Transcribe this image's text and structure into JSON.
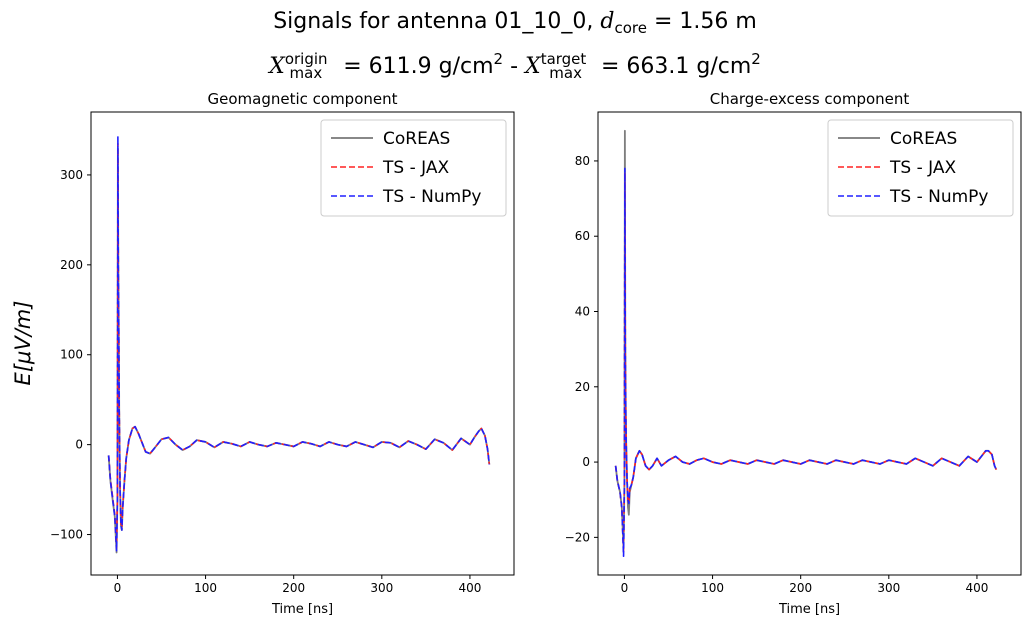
{
  "figure": {
    "title_line1_prefix": "Signals for antenna 01_10_0, ",
    "d_symbol": "d",
    "d_sub": "core",
    "d_value": " = 1.56 m",
    "x_symbol": "X",
    "xo_sup": "origin",
    "xo_sub": "max",
    "xo_value": " = 611.9 g/cm",
    "xo_exp": "2",
    "separator": " - ",
    "xt_sup": "target",
    "xt_sub": "max",
    "xt_value": " = 663.1 g/cm",
    "xt_exp": "2",
    "shared_ylabel": "E[μV/m]"
  },
  "colors": {
    "coreas": "#777777",
    "jax": "#ff2222",
    "numpy": "#2020ff"
  },
  "chart_data": [
    {
      "type": "line",
      "title": "Geomagnetic component",
      "xlabel": "Time [ns]",
      "ylabel": "E[μV/m]",
      "xlim": [
        -30,
        450
      ],
      "ylim": [
        -145,
        370
      ],
      "xticks": [
        0,
        100,
        200,
        300,
        400
      ],
      "yticks": [
        -100,
        0,
        100,
        200,
        300
      ],
      "legend": [
        "CoREAS",
        "TS - JAX",
        "TS - NumPy"
      ],
      "legend_position": "upper right",
      "series": [
        {
          "name": "CoREAS",
          "style": "solid",
          "x": [
            -10,
            -8,
            -5,
            -3,
            -1,
            0,
            0.5,
            1,
            1.5,
            2,
            3,
            4,
            5,
            6,
            8,
            10,
            13,
            17,
            20,
            24,
            28,
            32,
            37,
            42,
            50,
            58,
            66,
            74,
            82,
            90,
            100,
            110,
            120,
            130,
            140,
            150,
            160,
            170,
            180,
            190,
            200,
            210,
            220,
            230,
            240,
            250,
            260,
            270,
            280,
            290,
            300,
            310,
            320,
            330,
            340,
            350,
            360,
            370,
            380,
            390,
            400,
            405,
            410,
            413,
            417,
            420,
            422
          ],
          "values": [
            -12,
            -40,
            -65,
            -80,
            -120,
            -60,
            330,
            200,
            130,
            40,
            -50,
            -90,
            -95,
            -70,
            -40,
            -15,
            5,
            18,
            20,
            12,
            2,
            -8,
            -10,
            -4,
            6,
            8,
            0,
            -6,
            -2,
            5,
            3,
            -3,
            3,
            1,
            -2,
            3,
            0,
            -2,
            2,
            0,
            -2,
            3,
            1,
            -2,
            3,
            0,
            -2,
            3,
            0,
            -3,
            3,
            2,
            -3,
            4,
            0,
            -5,
            6,
            2,
            -6,
            7,
            0,
            8,
            15,
            18,
            10,
            -5,
            -22
          ]
        },
        {
          "name": "TS - JAX",
          "style": "dashed",
          "x": [
            -10,
            -8,
            -5,
            -3,
            -1,
            0,
            0.5,
            1,
            1.5,
            2,
            3,
            4,
            5,
            6,
            8,
            10,
            13,
            17,
            20,
            24,
            28,
            32,
            37,
            42,
            50,
            58,
            66,
            74,
            82,
            90,
            100,
            110,
            120,
            130,
            140,
            150,
            160,
            170,
            180,
            190,
            200,
            210,
            220,
            230,
            240,
            250,
            260,
            270,
            280,
            290,
            300,
            310,
            320,
            330,
            340,
            350,
            360,
            370,
            380,
            390,
            400,
            405,
            410,
            413,
            417,
            420,
            422
          ],
          "values": [
            -12,
            -38,
            -62,
            -78,
            -115,
            -55,
            335,
            190,
            125,
            40,
            -48,
            -88,
            -92,
            -68,
            -40,
            -15,
            5,
            18,
            20,
            12,
            2,
            -8,
            -10,
            -4,
            6,
            8,
            0,
            -6,
            -2,
            5,
            3,
            -3,
            3,
            1,
            -2,
            3,
            0,
            -2,
            2,
            0,
            -2,
            3,
            1,
            -2,
            3,
            0,
            -2,
            3,
            0,
            -3,
            3,
            2,
            -3,
            4,
            0,
            -5,
            6,
            2,
            -6,
            7,
            0,
            8,
            15,
            18,
            10,
            -5,
            -22
          ]
        },
        {
          "name": "TS - NumPy",
          "style": "dashed",
          "x": [
            -10,
            -8,
            -5,
            -3,
            -1,
            0,
            0.5,
            1,
            1.5,
            2,
            3,
            4,
            5,
            6,
            8,
            10,
            13,
            17,
            20,
            24,
            28,
            32,
            37,
            42,
            50,
            58,
            66,
            74,
            82,
            90,
            100,
            110,
            120,
            130,
            140,
            150,
            160,
            170,
            180,
            190,
            200,
            210,
            220,
            230,
            240,
            250,
            260,
            270,
            280,
            290,
            300,
            310,
            320,
            330,
            340,
            350,
            360,
            370,
            380,
            390,
            400,
            405,
            410,
            413,
            417,
            420,
            422
          ],
          "values": [
            -12,
            -40,
            -64,
            -80,
            -118,
            -58,
            343,
            195,
            128,
            40,
            -50,
            -90,
            -95,
            -70,
            -40,
            -15,
            5,
            18,
            20,
            12,
            2,
            -8,
            -10,
            -4,
            6,
            8,
            0,
            -6,
            -2,
            5,
            3,
            -3,
            3,
            1,
            -2,
            3,
            0,
            -2,
            2,
            0,
            -2,
            3,
            1,
            -2,
            3,
            0,
            -2,
            3,
            0,
            -3,
            3,
            2,
            -3,
            4,
            0,
            -5,
            6,
            2,
            -6,
            7,
            0,
            8,
            15,
            18,
            10,
            -5,
            -22
          ]
        }
      ]
    },
    {
      "type": "line",
      "title": "Charge-excess component",
      "xlabel": "Time [ns]",
      "ylabel": "",
      "xlim": [
        -30,
        450
      ],
      "ylim": [
        -30,
        93
      ],
      "xticks": [
        0,
        100,
        200,
        300,
        400
      ],
      "yticks": [
        -20,
        0,
        20,
        40,
        60,
        80
      ],
      "legend": [
        "CoREAS",
        "TS - JAX",
        "TS - NumPy"
      ],
      "legend_position": "upper right",
      "series": [
        {
          "name": "CoREAS",
          "style": "solid",
          "x": [
            -10,
            -8,
            -5,
            -3,
            -1,
            0,
            0.5,
            1,
            1.5,
            2,
            3,
            4,
            5,
            6,
            8,
            10,
            13,
            17,
            20,
            24,
            28,
            32,
            37,
            42,
            50,
            58,
            66,
            74,
            82,
            90,
            100,
            110,
            120,
            130,
            140,
            150,
            160,
            170,
            180,
            190,
            200,
            210,
            220,
            230,
            240,
            250,
            260,
            270,
            280,
            290,
            300,
            310,
            320,
            330,
            340,
            350,
            360,
            370,
            380,
            390,
            400,
            405,
            410,
            413,
            417,
            420,
            422
          ],
          "values": [
            -1,
            -5,
            -8,
            -12,
            -23,
            -5,
            88,
            30,
            15,
            5,
            -5,
            -12,
            -14,
            -8,
            -6,
            -4,
            1,
            3,
            2,
            -1,
            -2,
            -1,
            1,
            -1,
            0.5,
            1.5,
            0,
            -0.5,
            0.5,
            1,
            0,
            -0.5,
            0.5,
            0,
            -0.5,
            0.5,
            0,
            -0.5,
            0.5,
            0,
            -0.5,
            0.5,
            0,
            -0.5,
            0.5,
            0,
            -0.5,
            0.5,
            0,
            -0.5,
            0.5,
            0,
            -0.5,
            1,
            0,
            -1,
            1,
            0,
            -1,
            1.5,
            0,
            1.5,
            3,
            3,
            2,
            -1,
            -2
          ]
        },
        {
          "name": "TS - JAX",
          "style": "dashed",
          "x": [
            -10,
            -8,
            -5,
            -3,
            -1,
            0,
            0.5,
            1,
            1.5,
            2,
            3,
            4,
            5,
            6,
            8,
            10,
            13,
            17,
            20,
            24,
            28,
            32,
            37,
            42,
            50,
            58,
            66,
            74,
            82,
            90,
            100,
            110,
            120,
            130,
            140,
            150,
            160,
            170,
            180,
            190,
            200,
            210,
            220,
            230,
            240,
            250,
            260,
            270,
            280,
            290,
            300,
            310,
            320,
            330,
            340,
            350,
            360,
            370,
            380,
            390,
            400,
            405,
            410,
            413,
            417,
            420,
            422
          ],
          "values": [
            -1,
            -5,
            -8,
            -12,
            -24,
            -4,
            77,
            28,
            13,
            5,
            -5,
            -10,
            -11,
            -7,
            -6,
            -4,
            1,
            3,
            2,
            -1,
            -2,
            -1,
            1,
            -1,
            0.5,
            1.5,
            0,
            -0.5,
            0.5,
            1,
            0,
            -0.5,
            0.5,
            0,
            -0.5,
            0.5,
            0,
            -0.5,
            0.5,
            0,
            -0.5,
            0.5,
            0,
            -0.5,
            0.5,
            0,
            -0.5,
            0.5,
            0,
            -0.5,
            0.5,
            0,
            -0.5,
            1,
            0,
            -1,
            1,
            0,
            -1,
            1.5,
            0,
            1.5,
            3,
            3,
            2,
            -1,
            -2
          ]
        },
        {
          "name": "TS - NumPy",
          "style": "dashed",
          "x": [
            -10,
            -8,
            -5,
            -3,
            -1,
            0,
            0.5,
            1,
            1.5,
            2,
            3,
            4,
            5,
            6,
            8,
            10,
            13,
            17,
            20,
            24,
            28,
            32,
            37,
            42,
            50,
            58,
            66,
            74,
            82,
            90,
            100,
            110,
            120,
            130,
            140,
            150,
            160,
            170,
            180,
            190,
            200,
            210,
            220,
            230,
            240,
            250,
            260,
            270,
            280,
            290,
            300,
            310,
            320,
            330,
            340,
            350,
            360,
            370,
            380,
            390,
            400,
            405,
            410,
            413,
            417,
            420,
            422
          ],
          "values": [
            -1,
            -5,
            -8,
            -12,
            -25,
            -5,
            78,
            28,
            13,
            5,
            -5,
            -10,
            -11,
            -7,
            -6,
            -4,
            1,
            3,
            2,
            -1,
            -2,
            -1,
            1,
            -1,
            0.5,
            1.5,
            0,
            -0.5,
            0.5,
            1,
            0,
            -0.5,
            0.5,
            0,
            -0.5,
            0.5,
            0,
            -0.5,
            0.5,
            0,
            -0.5,
            0.5,
            0,
            -0.5,
            0.5,
            0,
            -0.5,
            0.5,
            0,
            -0.5,
            0.5,
            0,
            -0.5,
            1,
            0,
            -1,
            1,
            0,
            -1,
            1.5,
            0,
            1.5,
            3,
            3,
            2,
            -1,
            -2
          ]
        }
      ]
    }
  ]
}
